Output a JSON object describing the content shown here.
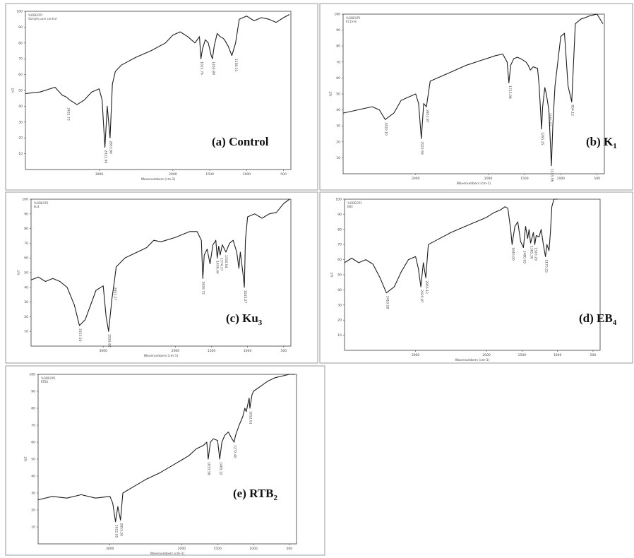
{
  "chart_data": [
    {
      "type": "line",
      "panel_label": "(a) Control",
      "label_main": "(a) Control",
      "label_sub": "",
      "header": [
        "%ODEOP1",
        "Sample pure control"
      ],
      "xlabel": "Wavenumbers (cm-1)",
      "ylabel": "%T",
      "xlim": [
        4000,
        400
      ],
      "ylim": [
        0,
        100
      ],
      "x_ticks": [
        3000,
        2000,
        1500,
        1000,
        500
      ],
      "y_ticks": [
        10,
        20,
        30,
        40,
        50,
        60,
        70,
        80,
        90,
        100
      ],
      "series": [
        {
          "x": [
            4000,
            3800,
            3600,
            3500,
            3450,
            3400,
            3300,
            3200,
            3100,
            3000,
            2960,
            2922,
            2890,
            2852,
            2820,
            2780,
            2700,
            2500,
            2300,
            2100,
            2000,
            1900,
            1800,
            1700,
            1640,
            1620,
            1600,
            1560,
            1520,
            1480,
            1464,
            1440,
            1400,
            1360,
            1320,
            1300,
            1250,
            1200,
            1150,
            1100,
            1000,
            900,
            800,
            700,
            600,
            500,
            420
          ],
          "y": [
            48,
            49,
            52,
            47,
            46,
            44,
            41,
            44,
            49,
            51,
            44,
            14,
            40,
            20,
            54,
            62,
            66,
            71,
            75,
            80,
            85,
            87,
            84,
            80,
            84,
            70,
            76,
            82,
            80,
            72,
            70,
            78,
            86,
            84,
            83,
            82,
            78,
            72,
            80,
            95,
            97,
            94,
            96,
            95,
            93,
            96,
            98
          ]
        }
      ],
      "peak_labels": [
        {
          "x": 3431.73,
          "y": 41,
          "text": "3431.73"
        },
        {
          "x": 2922.96,
          "y": 14,
          "text": "2922.96"
        },
        {
          "x": 2853.8,
          "y": 20,
          "text": "2853.80"
        },
        {
          "x": 1622.76,
          "y": 70,
          "text": "1622.76"
        },
        {
          "x": 1463.89,
          "y": 70,
          "text": "1463.89"
        },
        {
          "x": 1158.31,
          "y": 72,
          "text": "1158.31"
        }
      ]
    },
    {
      "type": "line",
      "panel_label": "(b) K1",
      "label_main": "(b) K",
      "label_sub": "1",
      "header": [
        "%ODEOP1",
        "K11mm"
      ],
      "xlabel": "Wavenumbers (cm-1)",
      "ylabel": "%T",
      "xlim": [
        4000,
        400
      ],
      "ylim": [
        0,
        100
      ],
      "x_ticks": [
        3000,
        2000,
        1500,
        1000,
        500
      ],
      "y_ticks": [
        10,
        20,
        30,
        40,
        50,
        60,
        70,
        80,
        90,
        100
      ],
      "series": [
        {
          "x": [
            4000,
            3800,
            3600,
            3500,
            3420,
            3300,
            3200,
            3100,
            3000,
            2960,
            2922,
            2890,
            2852,
            2800,
            2700,
            2500,
            2300,
            2100,
            1900,
            1800,
            1740,
            1715,
            1690,
            1650,
            1600,
            1550,
            1480,
            1450,
            1420,
            1380,
            1320,
            1300,
            1265,
            1250,
            1220,
            1200,
            1165,
            1130,
            1110,
            1080,
            1000,
            950,
            900,
            850,
            800,
            720,
            650,
            600,
            500,
            420
          ],
          "y": [
            38,
            40,
            42,
            40,
            34,
            38,
            46,
            48,
            50,
            44,
            22,
            44,
            42,
            58,
            60,
            64,
            68,
            71,
            74,
            75,
            70,
            57,
            68,
            72,
            73,
            72,
            70,
            68,
            65,
            67,
            66,
            56,
            28,
            42,
            54,
            50,
            40,
            5,
            30,
            55,
            86,
            88,
            55,
            45,
            94,
            97,
            98,
            99,
            100,
            94
          ]
        }
      ],
      "peak_labels": [
        {
          "x": 3420.1,
          "y": 34,
          "text": "3420.10"
        },
        {
          "x": 2922.66,
          "y": 22,
          "text": "2922.66"
        },
        {
          "x": 2852.87,
          "y": 42,
          "text": "2852.87"
        },
        {
          "x": 1715.08,
          "y": 57,
          "text": "1715.08"
        },
        {
          "x": 1265.15,
          "y": 28,
          "text": "1265.15"
        },
        {
          "x": 1165.97,
          "y": 40,
          "text": "1165.97"
        },
        {
          "x": 1133.96,
          "y": 5,
          "text": "1133.96"
        },
        {
          "x": 854.12,
          "y": 45,
          "text": "854.12"
        }
      ]
    },
    {
      "type": "line",
      "panel_label": "(c) Ku3",
      "label_main": "(c) Ku",
      "label_sub": "3",
      "header": [
        "%ODEOP1",
        "Ku3"
      ],
      "xlabel": "Wavenumbers (cm-1)",
      "ylabel": "%T",
      "xlim": [
        4000,
        400
      ],
      "ylim": [
        0,
        100
      ],
      "x_ticks": [
        3000,
        2000,
        1500,
        1000,
        500
      ],
      "y_ticks": [
        10,
        20,
        30,
        40,
        50,
        60,
        70,
        80,
        90,
        100
      ],
      "series": [
        {
          "x": [
            4000,
            3900,
            3800,
            3700,
            3600,
            3500,
            3400,
            3330,
            3250,
            3100,
            3000,
            2960,
            2926,
            2880,
            2852,
            2820,
            2700,
            2400,
            2300,
            2200,
            2000,
            1900,
            1800,
            1700,
            1640,
            1620,
            1600,
            1560,
            1520,
            1480,
            1440,
            1420,
            1400,
            1380,
            1350,
            1300,
            1250,
            1200,
            1150,
            1120,
            1100,
            1060,
            1045,
            1030,
            1000,
            900,
            800,
            700,
            600,
            500,
            420
          ],
          "y": [
            45,
            47,
            44,
            46,
            44,
            40,
            28,
            14,
            18,
            38,
            41,
            20,
            10,
            32,
            42,
            54,
            60,
            67,
            72,
            71,
            74,
            76,
            78,
            78,
            72,
            46,
            62,
            66,
            56,
            69,
            72,
            60,
            68,
            62,
            69,
            64,
            70,
            72,
            64,
            53,
            64,
            48,
            40,
            72,
            88,
            90,
            87,
            90,
            91,
            97,
            100
          ]
        }
      ],
      "peak_labels": [
        {
          "x": 3333.5,
          "y": 14,
          "text": "3333.50"
        },
        {
          "x": 2926.82,
          "y": 10,
          "text": "2926.82"
        },
        {
          "x": 2851.27,
          "y": 42,
          "text": "2851.27"
        },
        {
          "x": 1626.72,
          "y": 46,
          "text": "1626.72"
        },
        {
          "x": 1430.44,
          "y": 60,
          "text": "1430.44"
        },
        {
          "x": 1374.17,
          "y": 62,
          "text": "1374.17"
        },
        {
          "x": 1310.04,
          "y": 64,
          "text": "1310.04"
        },
        {
          "x": 1045.27,
          "y": 40,
          "text": "1045.27"
        }
      ]
    },
    {
      "type": "line",
      "panel_label": "(d) EB4",
      "label_main": "(d) EB",
      "label_sub": "4",
      "header": [
        "%ODEOP1",
        "EB4"
      ],
      "xlabel": "Wavenumbers (cm-1)",
      "ylabel": "%T",
      "xlim": [
        4000,
        400
      ],
      "ylim": [
        0,
        100
      ],
      "x_ticks": [
        3000,
        2000,
        1500,
        1000,
        500
      ],
      "y_ticks": [
        10,
        20,
        30,
        40,
        50,
        60,
        70,
        80,
        90,
        100
      ],
      "series": [
        {
          "x": [
            4000,
            3900,
            3800,
            3700,
            3600,
            3500,
            3410,
            3300,
            3200,
            3100,
            3000,
            2960,
            2925,
            2890,
            2855,
            2820,
            2700,
            2500,
            2300,
            2100,
            2000,
            1900,
            1800,
            1740,
            1700,
            1660,
            1640,
            1600,
            1560,
            1520,
            1480,
            1450,
            1420,
            1400,
            1380,
            1340,
            1320,
            1300,
            1260,
            1230,
            1200,
            1170,
            1150,
            1120,
            1100,
            1080,
            1050,
            1000
          ],
          "y": [
            58,
            61,
            58,
            60,
            57,
            48,
            38,
            42,
            52,
            60,
            62,
            54,
            42,
            58,
            48,
            70,
            73,
            78,
            82,
            86,
            88,
            91,
            93,
            95,
            94,
            80,
            70,
            82,
            85,
            72,
            68,
            82,
            74,
            80,
            71,
            78,
            70,
            76,
            75,
            80,
            70,
            62,
            70,
            66,
            78,
            95,
            100,
            100
          ]
        }
      ],
      "peak_labels": [
        {
          "x": 3410.18,
          "y": 38,
          "text": "3410.18"
        },
        {
          "x": 2925.87,
          "y": 42,
          "text": "2925.87"
        },
        {
          "x": 2855.12,
          "y": 48,
          "text": "2855.12"
        },
        {
          "x": 1640.0,
          "y": 70,
          "text": "1640.00"
        },
        {
          "x": 1480.95,
          "y": 68,
          "text": "1480.95"
        },
        {
          "x": 1381.3,
          "y": 71,
          "text": "1381.30"
        },
        {
          "x": 1320.29,
          "y": 70,
          "text": "1320.29"
        },
        {
          "x": 1170.25,
          "y": 62,
          "text": "1170.25"
        }
      ]
    },
    {
      "type": "line",
      "panel_label": "(e) RTB2",
      "label_main": "(e) RTB",
      "label_sub": "2",
      "header": [
        "%ODEOP1",
        "RTB2"
      ],
      "xlabel": "Wavenumbers (cm-1)",
      "ylabel": "%T",
      "xlim": [
        4000,
        400
      ],
      "ylim": [
        0,
        100
      ],
      "x_ticks": [
        3000,
        2000,
        1500,
        1000,
        500
      ],
      "y_ticks": [
        10,
        20,
        30,
        40,
        50,
        60,
        70,
        80,
        90,
        100
      ],
      "series": [
        {
          "x": [
            4000,
            3800,
            3600,
            3400,
            3200,
            3000,
            2960,
            2922,
            2890,
            2852,
            2820,
            2700,
            2500,
            2300,
            2100,
            1900,
            1800,
            1700,
            1650,
            1630,
            1600,
            1560,
            1500,
            1470,
            1440,
            1400,
            1350,
            1300,
            1270,
            1250,
            1200,
            1150,
            1120,
            1100,
            1060,
            1050,
            1020,
            1000,
            900,
            800,
            700,
            600,
            500,
            420
          ],
          "y": [
            26,
            28,
            27,
            29,
            27,
            28,
            24,
            13,
            22,
            14,
            30,
            33,
            38,
            42,
            47,
            52,
            56,
            58,
            60,
            50,
            60,
            62,
            61,
            50,
            60,
            64,
            66,
            62,
            60,
            64,
            70,
            75,
            80,
            78,
            86,
            80,
            88,
            90,
            93,
            96,
            98,
            99,
            100,
            100
          ]
        }
      ],
      "peak_labels": [
        {
          "x": 2922.95,
          "y": 13,
          "text": "2922.95"
        },
        {
          "x": 2853.2,
          "y": 14,
          "text": "2853.20"
        },
        {
          "x": 1633.58,
          "y": 50,
          "text": "1633.58"
        },
        {
          "x": 1465.12,
          "y": 50,
          "text": "1465.12"
        },
        {
          "x": 1272.4,
          "y": 60,
          "text": "1272.40"
        },
        {
          "x": 1052.61,
          "y": 80,
          "text": "1052.61"
        }
      ]
    }
  ]
}
